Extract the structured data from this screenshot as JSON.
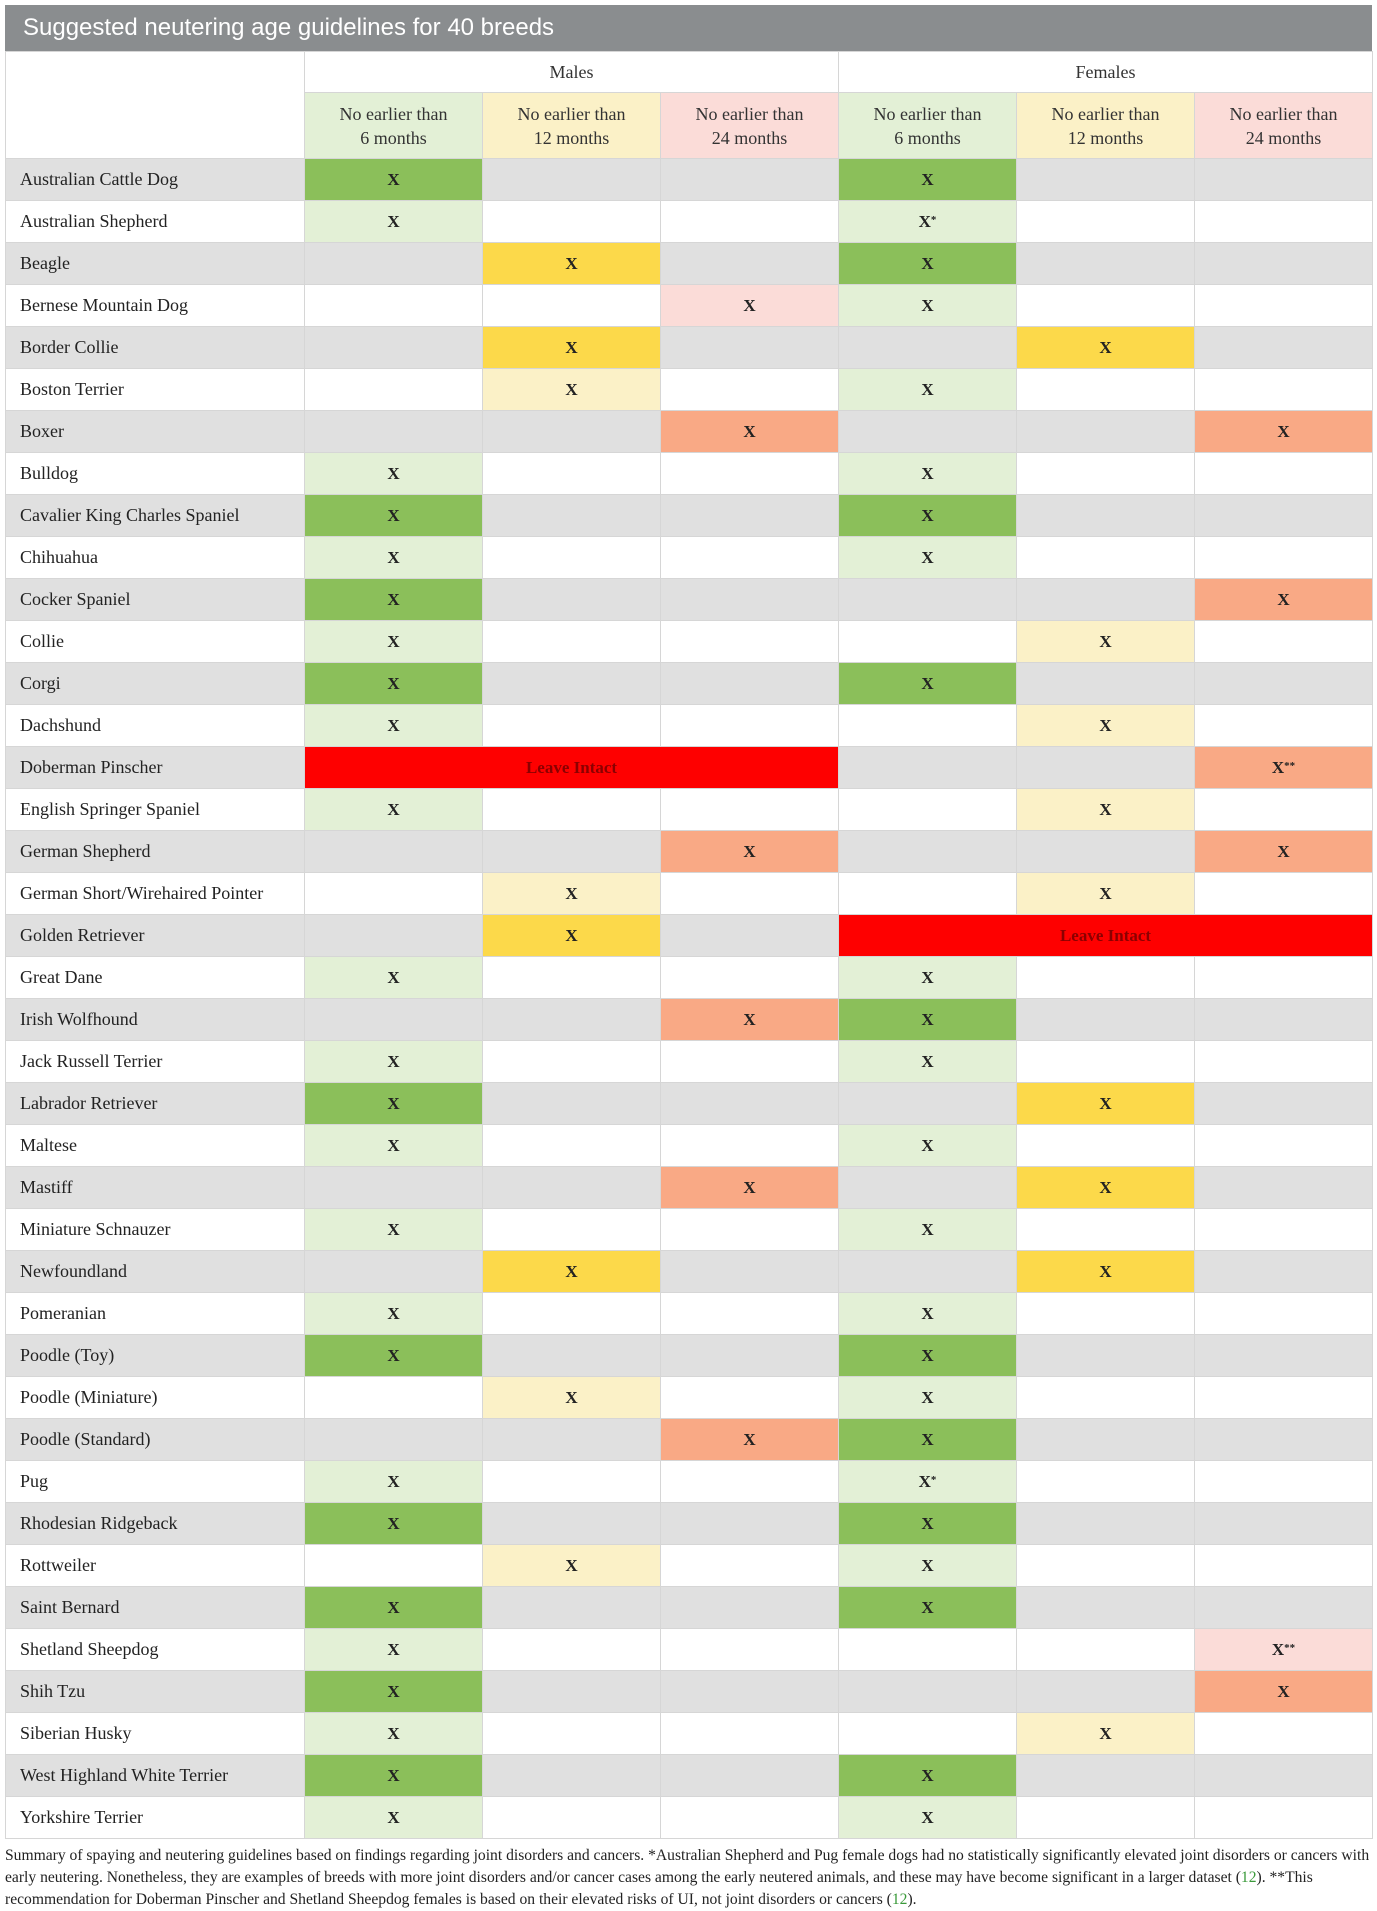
{
  "title": "Suggested neutering age guidelines for 40 breeds",
  "headers": {
    "groups": [
      "Males",
      "Females"
    ],
    "sub": [
      {
        "line1": "No earlier than",
        "line2": "6 months"
      },
      {
        "line1": "No earlier than",
        "line2": "12 months"
      },
      {
        "line1": "No earlier than",
        "line2": "24 months"
      },
      {
        "line1": "No earlier than",
        "line2": "6 months"
      },
      {
        "line1": "No earlier than",
        "line2": "12 months"
      },
      {
        "line1": "No earlier than",
        "line2": "24 months"
      }
    ],
    "sub_colors": [
      "#e3f0d6",
      "#fbf1c7",
      "#fbdcd8",
      "#e3f0d6",
      "#fbf1c7",
      "#fbdcd8"
    ]
  },
  "colors": {
    "g6_dark": "#8bbf5a",
    "g6_light": "#e3f0d6",
    "y12_dark": "#fcd94a",
    "y12_light": "#fbf1c7",
    "r24_dark": "#f9a985",
    "r24_light": "#fbdcd8",
    "intact": "#fe0000"
  },
  "intact_label": "Leave Intact",
  "rows": [
    {
      "breed": "Australian Cattle Dog",
      "male": {
        "col": 0,
        "mark": "X"
      },
      "female": {
        "col": 0,
        "mark": "X"
      }
    },
    {
      "breed": "Australian Shepherd",
      "male": {
        "col": 0,
        "mark": "X"
      },
      "female": {
        "col": 0,
        "mark": "X*"
      }
    },
    {
      "breed": "Beagle",
      "male": {
        "col": 1,
        "mark": "X"
      },
      "female": {
        "col": 0,
        "mark": "X"
      }
    },
    {
      "breed": "Bernese Mountain Dog",
      "male": {
        "col": 2,
        "mark": "X"
      },
      "female": {
        "col": 0,
        "mark": "X"
      }
    },
    {
      "breed": "Border Collie",
      "male": {
        "col": 1,
        "mark": "X"
      },
      "female": {
        "col": 1,
        "mark": "X"
      }
    },
    {
      "breed": "Boston Terrier",
      "male": {
        "col": 1,
        "mark": "X"
      },
      "female": {
        "col": 0,
        "mark": "X"
      }
    },
    {
      "breed": "Boxer",
      "male": {
        "col": 2,
        "mark": "X"
      },
      "female": {
        "col": 2,
        "mark": "X"
      }
    },
    {
      "breed": "Bulldog",
      "male": {
        "col": 0,
        "mark": "X"
      },
      "female": {
        "col": 0,
        "mark": "X"
      }
    },
    {
      "breed": "Cavalier King Charles Spaniel",
      "male": {
        "col": 0,
        "mark": "X"
      },
      "female": {
        "col": 0,
        "mark": "X"
      }
    },
    {
      "breed": "Chihuahua",
      "male": {
        "col": 0,
        "mark": "X"
      },
      "female": {
        "col": 0,
        "mark": "X"
      }
    },
    {
      "breed": "Cocker Spaniel",
      "male": {
        "col": 0,
        "mark": "X"
      },
      "female": {
        "col": 2,
        "mark": "X"
      }
    },
    {
      "breed": "Collie",
      "male": {
        "col": 0,
        "mark": "X"
      },
      "female": {
        "col": 1,
        "mark": "X"
      }
    },
    {
      "breed": "Corgi",
      "male": {
        "col": 0,
        "mark": "X"
      },
      "female": {
        "col": 0,
        "mark": "X"
      }
    },
    {
      "breed": "Dachshund",
      "male": {
        "col": 0,
        "mark": "X"
      },
      "female": {
        "col": 1,
        "mark": "X"
      }
    },
    {
      "breed": "Doberman Pinscher",
      "male": {
        "intact": true
      },
      "female": {
        "col": 2,
        "mark": "X**"
      }
    },
    {
      "breed": "English Springer Spaniel",
      "male": {
        "col": 0,
        "mark": "X"
      },
      "female": {
        "col": 1,
        "mark": "X"
      }
    },
    {
      "breed": "German Shepherd",
      "male": {
        "col": 2,
        "mark": "X"
      },
      "female": {
        "col": 2,
        "mark": "X"
      }
    },
    {
      "breed": "German Short/Wirehaired Pointer",
      "male": {
        "col": 1,
        "mark": "X"
      },
      "female": {
        "col": 1,
        "mark": "X"
      }
    },
    {
      "breed": "Golden Retriever",
      "male": {
        "col": 1,
        "mark": "X"
      },
      "female": {
        "intact": true
      }
    },
    {
      "breed": "Great Dane",
      "male": {
        "col": 0,
        "mark": "X"
      },
      "female": {
        "col": 0,
        "mark": "X"
      }
    },
    {
      "breed": "Irish Wolfhound",
      "male": {
        "col": 2,
        "mark": "X"
      },
      "female": {
        "col": 0,
        "mark": "X"
      }
    },
    {
      "breed": "Jack Russell Terrier",
      "male": {
        "col": 0,
        "mark": "X"
      },
      "female": {
        "col": 0,
        "mark": "X"
      }
    },
    {
      "breed": "Labrador Retriever",
      "male": {
        "col": 0,
        "mark": "X"
      },
      "female": {
        "col": 1,
        "mark": "X"
      }
    },
    {
      "breed": "Maltese",
      "male": {
        "col": 0,
        "mark": "X"
      },
      "female": {
        "col": 0,
        "mark": "X"
      }
    },
    {
      "breed": "Mastiff",
      "male": {
        "col": 2,
        "mark": "X"
      },
      "female": {
        "col": 1,
        "mark": "X"
      }
    },
    {
      "breed": "Miniature Schnauzer",
      "male": {
        "col": 0,
        "mark": "X"
      },
      "female": {
        "col": 0,
        "mark": "X"
      }
    },
    {
      "breed": "Newfoundland",
      "male": {
        "col": 1,
        "mark": "X"
      },
      "female": {
        "col": 1,
        "mark": "X"
      }
    },
    {
      "breed": "Pomeranian",
      "male": {
        "col": 0,
        "mark": "X"
      },
      "female": {
        "col": 0,
        "mark": "X"
      }
    },
    {
      "breed": "Poodle (Toy)",
      "male": {
        "col": 0,
        "mark": "X"
      },
      "female": {
        "col": 0,
        "mark": "X"
      }
    },
    {
      "breed": "Poodle (Miniature)",
      "male": {
        "col": 1,
        "mark": "X"
      },
      "female": {
        "col": 0,
        "mark": "X"
      }
    },
    {
      "breed": "Poodle (Standard)",
      "male": {
        "col": 2,
        "mark": "X"
      },
      "female": {
        "col": 0,
        "mark": "X"
      }
    },
    {
      "breed": "Pug",
      "male": {
        "col": 0,
        "mark": "X"
      },
      "female": {
        "col": 0,
        "mark": "X*"
      }
    },
    {
      "breed": "Rhodesian Ridgeback",
      "male": {
        "col": 0,
        "mark": "X"
      },
      "female": {
        "col": 0,
        "mark": "X"
      }
    },
    {
      "breed": "Rottweiler",
      "male": {
        "col": 1,
        "mark": "X"
      },
      "female": {
        "col": 0,
        "mark": "X"
      }
    },
    {
      "breed": "Saint Bernard",
      "male": {
        "col": 0,
        "mark": "X"
      },
      "female": {
        "col": 0,
        "mark": "X"
      }
    },
    {
      "breed": "Shetland Sheepdog",
      "male": {
        "col": 0,
        "mark": "X"
      },
      "female": {
        "col": 2,
        "mark": "X**"
      }
    },
    {
      "breed": "Shih Tzu",
      "male": {
        "col": 0,
        "mark": "X"
      },
      "female": {
        "col": 2,
        "mark": "X"
      }
    },
    {
      "breed": "Siberian Husky",
      "male": {
        "col": 0,
        "mark": "X"
      },
      "female": {
        "col": 1,
        "mark": "X"
      }
    },
    {
      "breed": "West Highland White Terrier",
      "male": {
        "col": 0,
        "mark": "X"
      },
      "female": {
        "col": 0,
        "mark": "X"
      }
    },
    {
      "breed": "Yorkshire Terrier",
      "male": {
        "col": 0,
        "mark": "X"
      },
      "female": {
        "col": 0,
        "mark": "X"
      }
    }
  ],
  "footnote": {
    "part1": "Summary of spaying and neutering guidelines based on findings regarding joint disorders and cancers. *Australian Shepherd and Pug female dogs had no statistically significantly elevated joint disorders or cancers with early neutering. Nonetheless, they are examples of breeds with more joint disorders and/or cancer cases among the early neutered animals, and these may have become significant in a larger dataset (",
    "ref1": "12",
    "part2": "). **This recommendation for Doberman Pinscher and Shetland Sheepdog females is based on their elevated risks of UI, not joint disorders or cancers (",
    "ref2": "12",
    "part3": ")."
  }
}
